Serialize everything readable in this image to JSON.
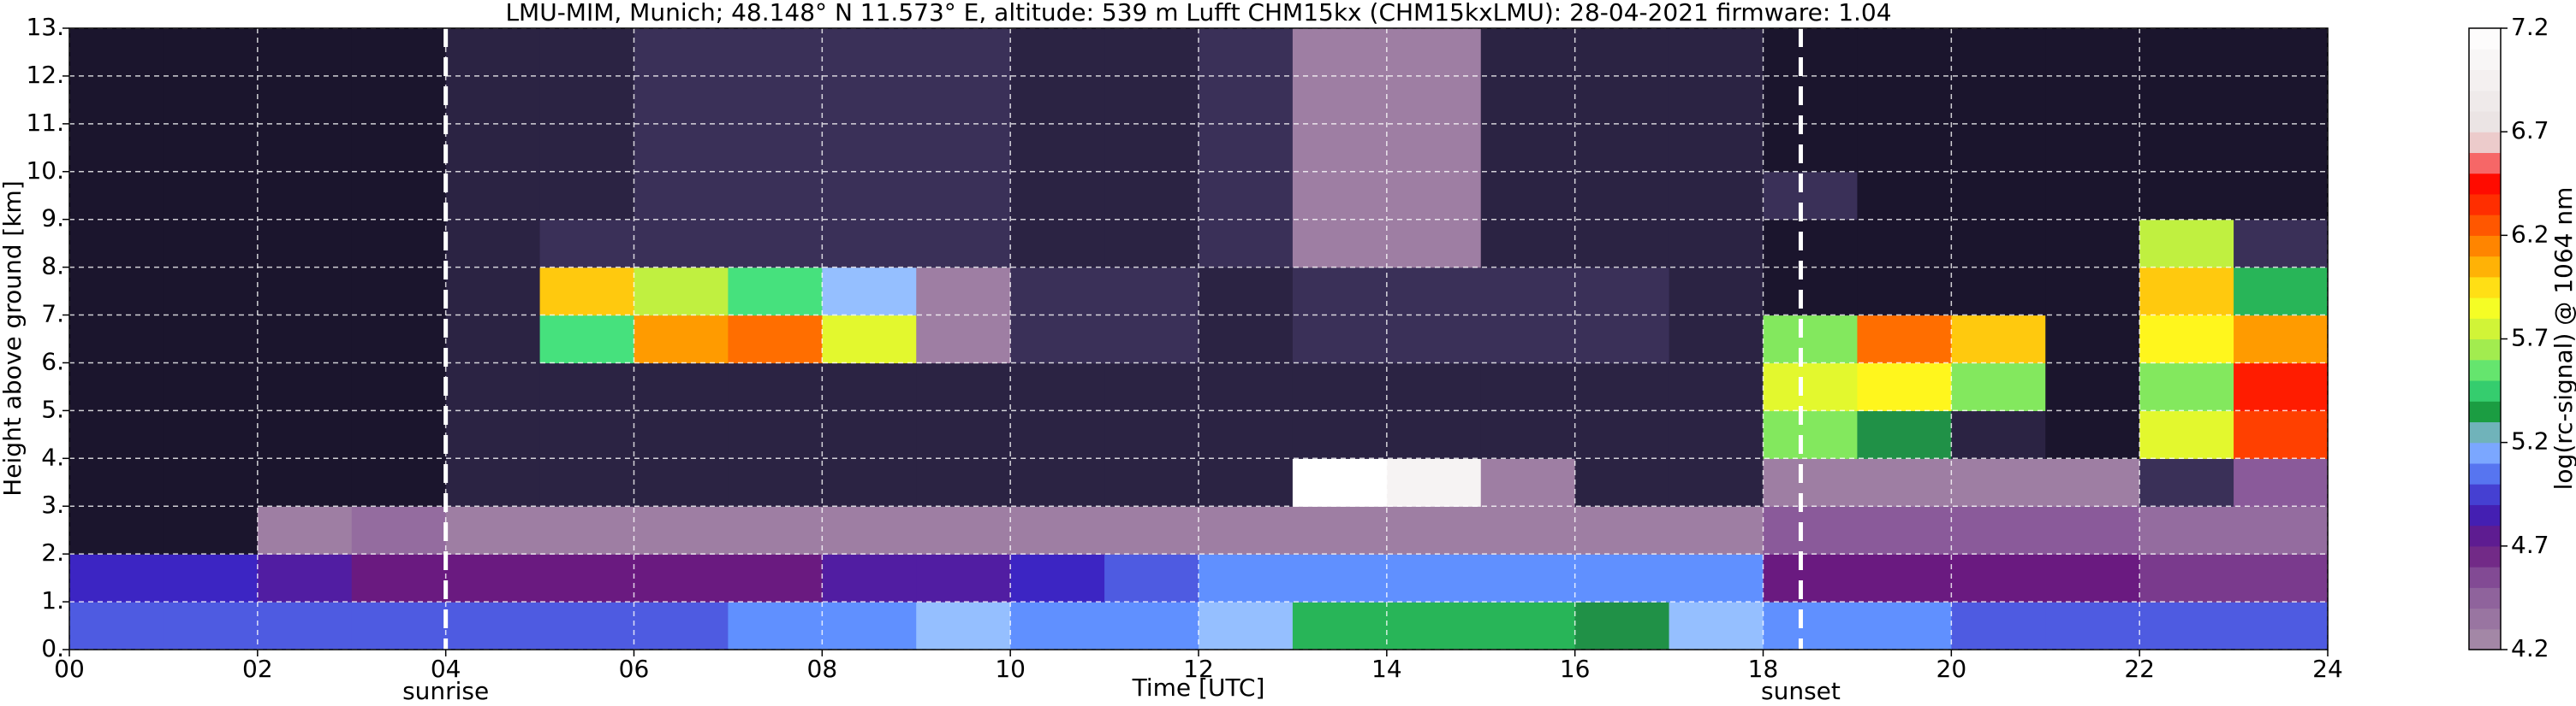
{
  "chart_data": {
    "type": "heatmap",
    "title": "LMU-MIM, Munich; 48.148° N 11.573° E, altitude: 539 m    Lufft CHM15kx (CHM15kxLMU): 28-04-2021    firmware: 1.04",
    "x_label": "Time [UTC]",
    "y_label": "Height above ground [km]",
    "colorbar_label": "log(rc-signal) @ 1064 nm",
    "xlim": [
      0,
      24
    ],
    "ylim": [
      0,
      13
    ],
    "xticks": [
      {
        "value": 0,
        "label": "00"
      },
      {
        "value": 2,
        "label": "02"
      },
      {
        "value": 4,
        "label": "04"
      },
      {
        "value": 6,
        "label": "06"
      },
      {
        "value": 8,
        "label": "08"
      },
      10,
      12,
      14,
      16,
      18,
      20,
      22,
      24
    ],
    "yticks": [
      {
        "value": 0,
        "label": "0."
      },
      {
        "value": 1,
        "label": "1."
      },
      {
        "value": 2,
        "label": "2."
      },
      {
        "value": 3,
        "label": "3."
      },
      {
        "value": 4,
        "label": "4."
      },
      {
        "value": 5,
        "label": "5."
      },
      {
        "value": 6,
        "label": "6."
      },
      {
        "value": 7,
        "label": "7."
      },
      {
        "value": 8,
        "label": "8."
      },
      {
        "value": 9,
        "label": "9."
      },
      {
        "value": 10,
        "label": "10."
      },
      {
        "value": 11,
        "label": "11."
      },
      {
        "value": 12,
        "label": "12."
      },
      {
        "value": 13,
        "label": "13."
      }
    ],
    "clim": [
      4.2,
      7.2
    ],
    "cticks": [
      4.2,
      4.7,
      5.2,
      5.7,
      6.2,
      6.7,
      7.2
    ],
    "grid": true,
    "annotations": [
      {
        "text": "sunrise",
        "x": 4.0
      },
      {
        "text": "sunset",
        "x": 18.4
      }
    ],
    "z": [
      [
        5.0,
        5.0,
        5.0,
        5.0,
        5.0,
        5.0,
        5.0,
        5.1,
        5.1,
        5.2,
        5.1,
        5.1,
        5.2,
        5.4,
        5.4,
        5.4,
        5.3,
        5.2,
        5.1,
        5.1,
        5.0,
        5.0,
        5.0,
        5.0
      ],
      [
        4.9,
        4.9,
        4.8,
        4.7,
        4.7,
        4.7,
        4.7,
        4.7,
        4.8,
        4.8,
        4.9,
        5.0,
        5.1,
        5.1,
        5.1,
        5.1,
        5.1,
        5.1,
        4.7,
        4.7,
        4.7,
        4.7,
        4.6,
        4.6
      ],
      [
        4.0,
        4.0,
        4.3,
        4.4,
        4.3,
        4.3,
        4.3,
        4.3,
        4.3,
        4.3,
        4.3,
        4.3,
        4.3,
        4.3,
        4.3,
        4.3,
        4.3,
        4.3,
        4.5,
        4.5,
        4.5,
        4.5,
        4.4,
        4.4
      ],
      [
        4.0,
        4.0,
        4.0,
        4.0,
        4.1,
        4.1,
        4.1,
        4.1,
        4.1,
        4.1,
        4.1,
        4.1,
        4.1,
        7.2,
        7.0,
        4.3,
        4.1,
        4.1,
        4.3,
        4.3,
        4.3,
        4.3,
        4.2,
        4.5
      ],
      [
        4.0,
        4.0,
        4.0,
        4.0,
        4.1,
        4.1,
        4.1,
        4.1,
        4.1,
        4.1,
        4.1,
        4.1,
        4.1,
        4.1,
        4.1,
        4.1,
        4.1,
        4.1,
        5.6,
        5.3,
        4.1,
        4.0,
        5.8,
        6.3
      ],
      [
        4.0,
        4.0,
        4.0,
        4.0,
        4.1,
        4.1,
        4.1,
        4.1,
        4.1,
        4.1,
        4.1,
        4.1,
        4.1,
        4.1,
        4.1,
        4.1,
        4.1,
        4.1,
        5.8,
        5.9,
        5.6,
        4.0,
        5.6,
        6.4
      ],
      [
        4.0,
        4.0,
        4.0,
        4.0,
        4.1,
        5.5,
        6.1,
        6.2,
        5.8,
        4.3,
        4.2,
        4.2,
        4.1,
        4.2,
        4.2,
        4.2,
        4.2,
        4.1,
        5.6,
        6.2,
        6.0,
        4.0,
        5.9,
        6.1
      ],
      [
        4.0,
        4.0,
        4.0,
        4.0,
        4.1,
        6.0,
        5.7,
        5.5,
        5.2,
        4.3,
        4.2,
        4.2,
        4.1,
        4.2,
        4.2,
        4.2,
        4.2,
        4.1,
        4.0,
        4.0,
        4.0,
        4.0,
        6.0,
        5.4
      ],
      [
        4.0,
        4.0,
        4.0,
        4.0,
        4.1,
        4.2,
        4.2,
        4.2,
        4.2,
        4.2,
        4.1,
        4.1,
        4.2,
        4.3,
        4.3,
        4.1,
        4.1,
        4.1,
        4.0,
        4.0,
        4.0,
        4.0,
        5.7,
        4.2
      ],
      [
        4.0,
        4.0,
        4.0,
        4.0,
        4.1,
        4.1,
        4.2,
        4.2,
        4.2,
        4.2,
        4.1,
        4.1,
        4.2,
        4.3,
        4.3,
        4.1,
        4.1,
        4.1,
        4.2,
        4.0,
        4.0,
        4.0,
        4.0,
        4.0
      ],
      [
        4.0,
        4.0,
        4.0,
        4.0,
        4.1,
        4.1,
        4.2,
        4.2,
        4.2,
        4.2,
        4.1,
        4.1,
        4.2,
        4.3,
        4.3,
        4.1,
        4.1,
        4.1,
        4.0,
        4.0,
        4.0,
        4.0,
        4.0,
        4.0
      ],
      [
        4.0,
        4.0,
        4.0,
        4.0,
        4.1,
        4.1,
        4.2,
        4.2,
        4.2,
        4.2,
        4.1,
        4.1,
        4.2,
        4.3,
        4.3,
        4.1,
        4.1,
        4.1,
        4.0,
        4.0,
        4.0,
        4.0,
        4.0,
        4.0
      ],
      [
        4.0,
        4.0,
        4.0,
        4.0,
        4.1,
        4.1,
        4.2,
        4.2,
        4.2,
        4.2,
        4.1,
        4.1,
        4.2,
        4.3,
        4.3,
        4.1,
        4.1,
        4.1,
        4.0,
        4.0,
        4.0,
        4.0,
        4.0,
        4.0
      ]
    ]
  }
}
